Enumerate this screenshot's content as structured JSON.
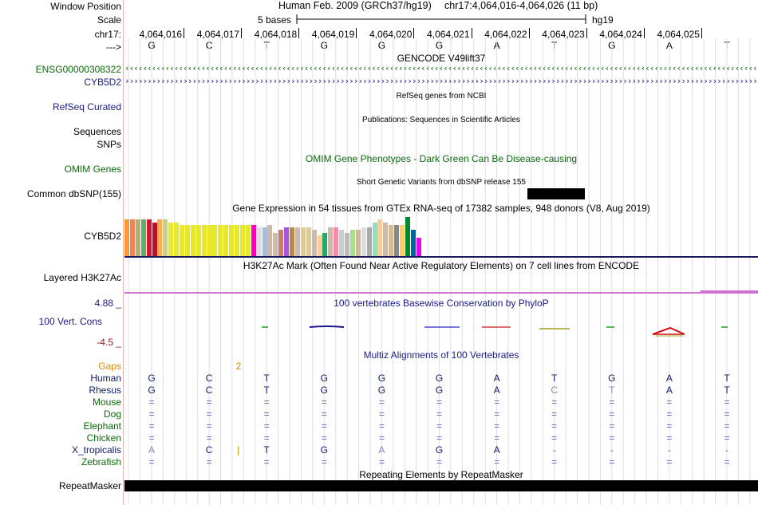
{
  "labels": {
    "window_position": "Window Position",
    "scale": "Scale",
    "chrom": "chr17:",
    "strand": "--->",
    "ensg": "ENSG00000308322",
    "cyb5d2": "CYB5D2",
    "refseq": "RefSeq Curated",
    "sequences": "Sequences",
    "snps": "SNPs",
    "omim": "OMIM Genes",
    "dbsnp": "Common dbSNP(155)",
    "gtex": "CYB5D2",
    "h3k27ac": "Layered H3K27Ac",
    "phylop_max": "4.88 _",
    "cons": "100 Vert. Cons",
    "phylop_min": "-4.5 _",
    "gaps": "Gaps",
    "repeatmasker": "RepeatMasker"
  },
  "header": {
    "assembly": "Human Feb. 2009 (GRCh37/hg19)",
    "position": "chr17:4,064,016-4,064,026 (11 bp)",
    "scale_text": "5 bases",
    "scale_db": "hg19"
  },
  "coords": [
    "4,064,016",
    "4,064,017",
    "4,064,018",
    "4,064,019",
    "4,064,020",
    "4,064,021",
    "4,064,022",
    "4,064,023",
    "4,064,024",
    "4,064,025"
  ],
  "bases": [
    "G",
    "C",
    "T",
    "G",
    "G",
    "G",
    "A",
    "T",
    "G",
    "A",
    "T"
  ],
  "tracks": {
    "gencode": "GENCODE V49lift37",
    "refseq": "RefSeq genes from NCBI",
    "pubs": "Publications: Sequences in Scientific Articles",
    "omim": "OMIM Gene Phenotypes - Dark Green Can Be Disease-causing",
    "dbsnp": "Short Genetic Variants from dbSNP release 155",
    "gtex": "Gene Expression in 54 tissues from GTEx RNA-seq of 17382 samples, 948 donors (V8, Aug 2019)",
    "h3k27ac": "H3K27Ac Mark (Often Found Near Active Regulatory Elements) on 7 cell lines from ENCODE",
    "phylop": "100 vertebrates Basewise Conservation by PhyloP",
    "multiz": "Multiz Alignments of 100 Vertebrates",
    "rmsk": "Repeating Elements by RepeatMasker"
  },
  "gap_value": "2",
  "species": [
    {
      "name": "Human",
      "color": "#0b1a6b",
      "seq": [
        "G",
        "C",
        "T",
        "G",
        "G",
        "G",
        "A",
        "T",
        "G",
        "A",
        "T"
      ],
      "gap": ""
    },
    {
      "name": "Rhesus",
      "color": "#0b1a6b",
      "seq": [
        "G",
        "C",
        "T",
        "G",
        "G",
        "G",
        "A",
        "C",
        "T",
        "A",
        "T"
      ],
      "gap": ""
    },
    {
      "name": "Mouse",
      "color": "#0a6a0a",
      "seq": [
        "=",
        "=",
        "=",
        "=",
        "=",
        "=",
        "=",
        "=",
        "=",
        "=",
        "="
      ],
      "gap": ""
    },
    {
      "name": "Dog",
      "color": "#0a6a0a",
      "seq": [
        "=",
        "=",
        "=",
        "=",
        "=",
        "=",
        "=",
        "=",
        "=",
        "=",
        "="
      ],
      "gap": ""
    },
    {
      "name": "Elephant",
      "color": "#0a6a0a",
      "seq": [
        "=",
        "=",
        "=",
        "=",
        "=",
        "=",
        "=",
        "=",
        "=",
        "=",
        "="
      ],
      "gap": ""
    },
    {
      "name": "Chicken",
      "color": "#0a6a0a",
      "seq": [
        "=",
        "=",
        "=",
        "=",
        "=",
        "=",
        "=",
        "=",
        "=",
        "=",
        "="
      ],
      "gap": ""
    },
    {
      "name": "X_tropicalis",
      "color": "#0b1a6b",
      "seq": [
        "A",
        "C",
        "T",
        "G",
        "A",
        "G",
        "A",
        "-",
        "-",
        "-",
        "-"
      ],
      "gap": "|"
    },
    {
      "name": "Zebrafish",
      "color": "#0a6a0a",
      "seq": [
        "=",
        "=",
        "=",
        "=",
        "=",
        "=",
        "=",
        "=",
        "=",
        "=",
        "="
      ],
      "gap": ""
    }
  ],
  "gtex_values": [
    14,
    14,
    14,
    14,
    14,
    13,
    14,
    14,
    13,
    13,
    12,
    12,
    12,
    12,
    12,
    12,
    12,
    12,
    12,
    12,
    12,
    12,
    12,
    12,
    11,
    11,
    12,
    9,
    10,
    11,
    11,
    11,
    11,
    11,
    10,
    8,
    9,
    11,
    11,
    10,
    9,
    10,
    10,
    11,
    11,
    13,
    14,
    13,
    12,
    12,
    12,
    15,
    10,
    7
  ],
  "gtex_colors": [
    "#ff9933",
    "#ff7f50",
    "#b0b07a",
    "#66aa66",
    "#dd1133",
    "#bb1122",
    "#ffaa55",
    "#cccc88",
    "#e8e82a",
    "#e8e82a",
    "#e8e82a",
    "#e8e82a",
    "#e8e82a",
    "#e8e82a",
    "#e8e82a",
    "#e8e82a",
    "#e8e82a",
    "#e8e82a",
    "#e8e82a",
    "#e8e82a",
    "#e8e82a",
    "#e8e82a",
    "#e8e82a",
    "#ff00bb",
    "#dddddd",
    "#aabbdd",
    "#ccbbaa",
    "#ccbbaa",
    "#cc7a6a",
    "#aa55dd",
    "#bb8855",
    "#ccbbaa",
    "#ddcc99",
    "#ddcc99",
    "#ccbbaa",
    "#ffcc99",
    "#22aa66",
    "#ccbbaa",
    "#ff88aa",
    "#cccccc",
    "#bbbbbb",
    "#aadd88",
    "#ccbb99",
    "#dddddd",
    "#aaaaaa",
    "#99ddbb",
    "#ffcc99",
    "#ccbbaa",
    "#ddbb88",
    "#888888",
    "#ffcc66",
    "#008833",
    "#006699",
    "#ee00ee"
  ]
}
